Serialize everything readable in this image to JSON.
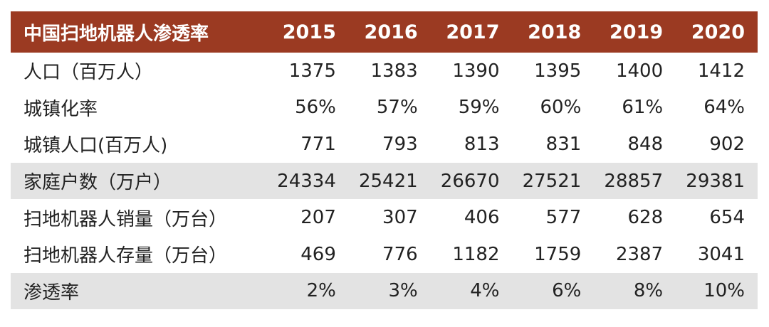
{
  "chart_data": {
    "type": "table",
    "columns": [
      "中国扫地机器人渗透率",
      "2015",
      "2016",
      "2017",
      "2018",
      "2019",
      "2020"
    ],
    "rows": [
      {
        "label": "人口（百万人）",
        "values": [
          "1375",
          "1383",
          "1390",
          "1395",
          "1400",
          "1412"
        ],
        "shaded": false
      },
      {
        "label": "城镇化率",
        "values": [
          "56%",
          "57%",
          "59%",
          "60%",
          "61%",
          "64%"
        ],
        "shaded": false
      },
      {
        "label": "城镇人口(百万人)",
        "values": [
          "771",
          "793",
          "813",
          "831",
          "848",
          "902"
        ],
        "shaded": false
      },
      {
        "label": "家庭户数（万户）",
        "values": [
          "24334",
          "25421",
          "26670",
          "27521",
          "28857",
          "29381"
        ],
        "shaded": true
      },
      {
        "label": "扫地机器人销量（万台）",
        "values": [
          "207",
          "307",
          "406",
          "577",
          "628",
          "654"
        ],
        "shaded": false
      },
      {
        "label": "扫地机器人存量（万台）",
        "values": [
          "469",
          "776",
          "1182",
          "1759",
          "2387",
          "3041"
        ],
        "shaded": false
      },
      {
        "label": "渗透率",
        "values": [
          "2%",
          "3%",
          "4%",
          "6%",
          "8%",
          "10%"
        ],
        "shaded": true
      }
    ]
  },
  "colors": {
    "header_bg": "#9b3a22",
    "header_text": "#ffffff",
    "shaded_row_bg": "#e3e3e3",
    "body_text": "#222222"
  }
}
